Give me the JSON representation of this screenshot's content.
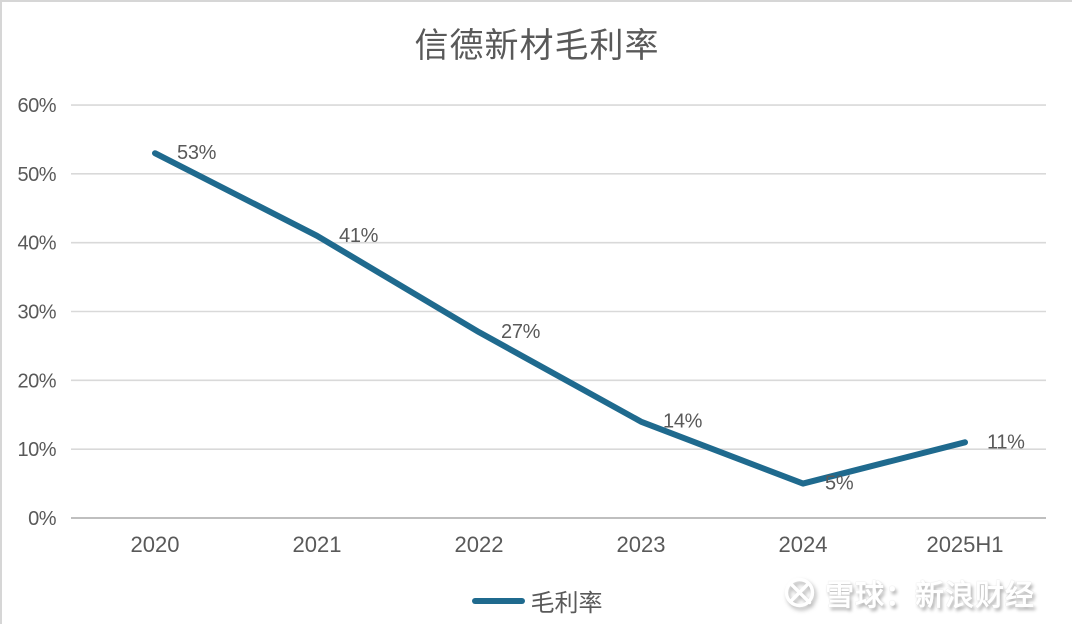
{
  "title": "信德新材毛利率",
  "legend": {
    "label": "毛利率"
  },
  "watermark": {
    "text": "雪球：新浪财经",
    "logo": "xueqiu-circle-x"
  },
  "colors": {
    "line": "#1f6a8e",
    "text": "#595959",
    "gridline": "#d9d9d9",
    "axis_line": "#bfbfbf"
  },
  "chart_data": {
    "type": "line",
    "title": "信德新材毛利率",
    "categories": [
      "2020",
      "2021",
      "2022",
      "2023",
      "2024",
      "2025H1"
    ],
    "series": [
      {
        "name": "毛利率",
        "values": [
          53,
          41,
          27,
          14,
          5,
          11
        ]
      }
    ],
    "data_labels": [
      "53%",
      "41%",
      "27%",
      "14%",
      "5%",
      "11%"
    ],
    "ylabel": "",
    "xlabel": "",
    "ylim": [
      0,
      60
    ],
    "ytick_step": 10,
    "ytick_labels": [
      "0%",
      "10%",
      "20%",
      "30%",
      "40%",
      "50%",
      "60%"
    ],
    "grid": true,
    "legend_position": "bottom"
  }
}
